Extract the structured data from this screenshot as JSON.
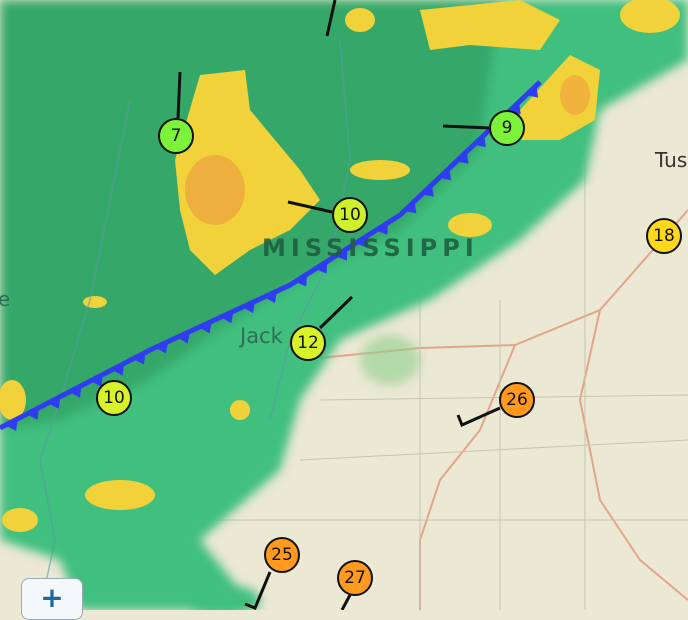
{
  "map": {
    "state_label": "MISSISSIPPI",
    "city_labels": [
      "Jack",
      "Tus",
      "e"
    ],
    "front_color": "#2f3cf0",
    "radar_colors": {
      "light_green": "#4fcf8a",
      "green": "#2f9a5c",
      "yellow": "#f2d23a",
      "orange": "#eea040"
    }
  },
  "stations": [
    {
      "value": "7",
      "color": "#7cf23a"
    },
    {
      "value": "9",
      "color": "#7cf23a"
    },
    {
      "value": "10",
      "color": "#cdf02a"
    },
    {
      "value": "12",
      "color": "#d8f22a"
    },
    {
      "value": "10",
      "color": "#d8f22a"
    },
    {
      "value": "18",
      "color": "#ffd81e"
    },
    {
      "value": "26",
      "color": "#ff9a1f"
    },
    {
      "value": "25",
      "color": "#ff9a1f"
    },
    {
      "value": "27",
      "color": "#ff9a1f"
    }
  ],
  "controls": {
    "zoom_in_label": "+"
  }
}
